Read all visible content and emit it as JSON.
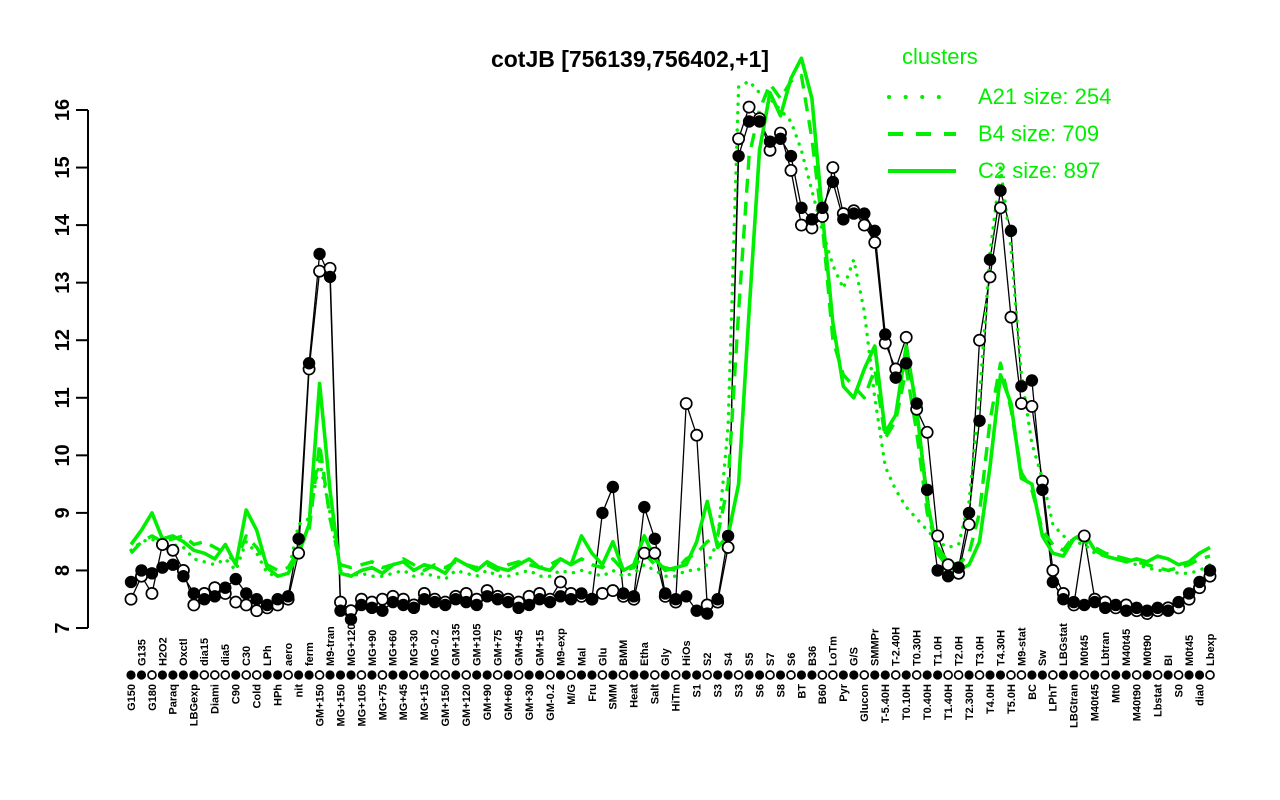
{
  "chart_data": {
    "type": "line",
    "title": "cotJB [756139,756402,+1]",
    "gene": "cotJB",
    "coordinates": "[756139,756402,+1]",
    "colors": {
      "cluster_green": "#00ee00",
      "probe_black": "#000000",
      "background": "#ffffff"
    },
    "ylim": [
      7,
      16
    ],
    "yticks": [
      7,
      8,
      9,
      10,
      11,
      12,
      13,
      14,
      15,
      16
    ],
    "grid": false,
    "legend": {
      "title": "clusters",
      "position": "top-right",
      "entries": [
        {
          "cluster": "A21",
          "size": 254,
          "label": "A21 size: 254",
          "line_style": "dotted"
        },
        {
          "cluster": "B4",
          "size": 709,
          "label": "B4 size: 709",
          "line_style": "dashed"
        },
        {
          "cluster": "C2",
          "size": 897,
          "label": "C2 size: 897",
          "line_style": "solid"
        }
      ]
    },
    "x_axis": {
      "conditions": [
        {
          "l": "G150",
          "r": "b",
          "m": "f"
        },
        {
          "l": "G135",
          "r": "t",
          "m": "f"
        },
        {
          "l": "G180",
          "r": "b",
          "m": "o"
        },
        {
          "l": "H2O2",
          "r": "t",
          "m": "f"
        },
        {
          "l": "Paraq",
          "r": "b",
          "m": "f"
        },
        {
          "l": "Oxctl",
          "r": "t",
          "m": "f"
        },
        {
          "l": "LBGexp",
          "r": "b",
          "m": "f"
        },
        {
          "l": "dia15",
          "r": "t",
          "m": "o"
        },
        {
          "l": "Diami",
          "r": "b",
          "m": "o"
        },
        {
          "l": "dia5",
          "r": "t",
          "m": "o"
        },
        {
          "l": "C90",
          "r": "b",
          "m": "f"
        },
        {
          "l": "C30",
          "r": "t",
          "m": "o"
        },
        {
          "l": "Cold",
          "r": "b",
          "m": "o"
        },
        {
          "l": "LPh",
          "r": "t",
          "m": "f"
        },
        {
          "l": "HPh",
          "r": "b",
          "m": "f"
        },
        {
          "l": "aero",
          "r": "t",
          "m": "o"
        },
        {
          "l": "nit",
          "r": "b",
          "m": "f"
        },
        {
          "l": "ferm",
          "r": "t",
          "m": "f"
        },
        {
          "l": "GM+150",
          "r": "b",
          "m": "o"
        },
        {
          "l": "M9-tran",
          "r": "t",
          "m": "f"
        },
        {
          "l": "MG+150",
          "r": "b",
          "m": "f"
        },
        {
          "l": "MG+120",
          "r": "t",
          "m": "f"
        },
        {
          "l": "MG+105",
          "r": "b",
          "m": "o"
        },
        {
          "l": "MG+90",
          "r": "t",
          "m": "f"
        },
        {
          "l": "MG+75",
          "r": "b",
          "m": "o"
        },
        {
          "l": "MG+60",
          "r": "t",
          "m": "f"
        },
        {
          "l": "MG+45",
          "r": "b",
          "m": "f"
        },
        {
          "l": "MG+30",
          "r": "t",
          "m": "o"
        },
        {
          "l": "MG+15",
          "r": "b",
          "m": "f"
        },
        {
          "l": "MG-0.2",
          "r": "t",
          "m": "o"
        },
        {
          "l": "GM+150",
          "r": "b",
          "m": "o"
        },
        {
          "l": "GM+135",
          "r": "t",
          "m": "f"
        },
        {
          "l": "GM+120",
          "r": "b",
          "m": "o"
        },
        {
          "l": "GM+105",
          "r": "t",
          "m": "f"
        },
        {
          "l": "GM+90",
          "r": "b",
          "m": "f"
        },
        {
          "l": "GM+75",
          "r": "t",
          "m": "o"
        },
        {
          "l": "GM+60",
          "r": "b",
          "m": "f"
        },
        {
          "l": "GM+45",
          "r": "t",
          "m": "o"
        },
        {
          "l": "GM+30",
          "r": "b",
          "m": "f"
        },
        {
          "l": "GM+15",
          "r": "t",
          "m": "f"
        },
        {
          "l": "GM-0.2",
          "r": "b",
          "m": "o"
        },
        {
          "l": "M9-exp",
          "r": "t",
          "m": "f"
        },
        {
          "l": "M/G",
          "r": "b",
          "m": "o"
        },
        {
          "l": "Mal",
          "r": "t",
          "m": "f"
        },
        {
          "l": "Fru",
          "r": "b",
          "m": "f"
        },
        {
          "l": "Glu",
          "r": "t",
          "m": "o"
        },
        {
          "l": "SMM",
          "r": "b",
          "m": "f"
        },
        {
          "l": "BMM",
          "r": "t",
          "m": "o"
        },
        {
          "l": "Heat",
          "r": "b",
          "m": "f"
        },
        {
          "l": "Etha",
          "r": "t",
          "m": "f"
        },
        {
          "l": "Salt",
          "r": "b",
          "m": "o"
        },
        {
          "l": "Gly",
          "r": "t",
          "m": "f"
        },
        {
          "l": "HiTm",
          "r": "b",
          "m": "o"
        },
        {
          "l": "HiOs",
          "r": "t",
          "m": "f"
        },
        {
          "l": "S1",
          "r": "b",
          "m": "f"
        },
        {
          "l": "S2",
          "r": "t",
          "m": "o"
        },
        {
          "l": "S3",
          "r": "b",
          "m": "f"
        },
        {
          "l": "S4",
          "r": "t",
          "m": "f"
        },
        {
          "l": "S3",
          "r": "b",
          "m": "o"
        },
        {
          "l": "S5",
          "r": "t",
          "m": "f"
        },
        {
          "l": "S6",
          "r": "b",
          "m": "f"
        },
        {
          "l": "S7",
          "r": "t",
          "m": "o"
        },
        {
          "l": "S8",
          "r": "b",
          "m": "f"
        },
        {
          "l": "S6",
          "r": "t",
          "m": "o"
        },
        {
          "l": "BT",
          "r": "b",
          "m": "f"
        },
        {
          "l": "B36",
          "r": "t",
          "m": "f"
        },
        {
          "l": "B60",
          "r": "b",
          "m": "o"
        },
        {
          "l": "LoTm",
          "r": "t",
          "m": "o"
        },
        {
          "l": "Pyr",
          "r": "b",
          "m": "f"
        },
        {
          "l": "G/S",
          "r": "t",
          "m": "f"
        },
        {
          "l": "Glucon",
          "r": "b",
          "m": "o"
        },
        {
          "l": "SMMPr",
          "r": "t",
          "m": "f"
        },
        {
          "l": "T-5.40H",
          "r": "b",
          "m": "f"
        },
        {
          "l": "T-2.40H",
          "r": "t",
          "m": "o"
        },
        {
          "l": "T0.10H",
          "r": "b",
          "m": "f"
        },
        {
          "l": "T0.30H",
          "r": "t",
          "m": "o"
        },
        {
          "l": "T0.40H",
          "r": "b",
          "m": "f"
        },
        {
          "l": "T1.0H",
          "r": "t",
          "m": "f"
        },
        {
          "l": "T1.40H",
          "r": "b",
          "m": "o"
        },
        {
          "l": "T2.0H",
          "r": "t",
          "m": "o"
        },
        {
          "l": "T2.30H",
          "r": "b",
          "m": "f"
        },
        {
          "l": "T3.0H",
          "r": "t",
          "m": "o"
        },
        {
          "l": "T4.0H",
          "r": "b",
          "m": "f"
        },
        {
          "l": "T4.30H",
          "r": "t",
          "m": "f"
        },
        {
          "l": "T5.0H",
          "r": "b",
          "m": "o"
        },
        {
          "l": "M9-stat",
          "r": "t",
          "m": "o"
        },
        {
          "l": "BC",
          "r": "b",
          "m": "f"
        },
        {
          "l": "Sw",
          "r": "t",
          "m": "f"
        },
        {
          "l": "LPhT",
          "r": "b",
          "m": "o"
        },
        {
          "l": "LBGstat",
          "r": "t",
          "m": "f"
        },
        {
          "l": "LBGtran",
          "r": "b",
          "m": "f"
        },
        {
          "l": "M0t45",
          "r": "t",
          "m": "o"
        },
        {
          "l": "M40t45",
          "r": "b",
          "m": "f"
        },
        {
          "l": "Lbtran",
          "r": "t",
          "m": "o"
        },
        {
          "l": "Mt0",
          "r": "b",
          "m": "f"
        },
        {
          "l": "M40t45",
          "r": "t",
          "m": "f"
        },
        {
          "l": "M40t90",
          "r": "b",
          "m": "o"
        },
        {
          "l": "M0t90",
          "r": "t",
          "m": "f"
        },
        {
          "l": "Lbstat",
          "r": "b",
          "m": "o"
        },
        {
          "l": "BI",
          "r": "t",
          "m": "f"
        },
        {
          "l": "S0",
          "r": "b",
          "m": "o"
        },
        {
          "l": "M0t45",
          "r": "t",
          "m": "f"
        },
        {
          "l": "dia0",
          "r": "b",
          "m": "f"
        },
        {
          "l": "Lbexp",
          "r": "t",
          "m": "o"
        }
      ]
    },
    "series": [
      {
        "name": "A21",
        "role": "cluster-mean",
        "style": "dotted",
        "color": "#00ee00",
        "values": [
          8.35,
          8.5,
          8.55,
          8.4,
          8.45,
          8.4,
          8.2,
          8.15,
          8.1,
          8.2,
          8.0,
          8.5,
          8.3,
          7.95,
          7.9,
          7.95,
          8.8,
          8.9,
          9.9,
          9.0,
          8.0,
          7.9,
          7.95,
          7.9,
          7.9,
          7.95,
          8.0,
          7.9,
          7.95,
          7.9,
          7.85,
          8.0,
          7.95,
          7.9,
          8.0,
          7.9,
          7.9,
          7.95,
          8.0,
          7.9,
          7.9,
          8.0,
          7.95,
          8.0,
          7.95,
          7.9,
          8.0,
          7.9,
          7.95,
          8.1,
          8.0,
          7.9,
          7.9,
          8.0,
          8.0,
          8.1,
          8.5,
          10.5,
          16.4,
          16.5,
          16.3,
          16.2,
          16.0,
          15.8,
          15.3,
          14.6,
          13.9,
          13.3,
          12.9,
          13.4,
          12.5,
          11.0,
          9.8,
          9.4,
          9.1,
          8.9,
          8.7,
          8.5,
          8.4,
          8.45,
          9.2,
          11.0,
          13.5,
          15.0,
          13.6,
          11.4,
          10.2,
          9.6,
          8.8,
          8.6,
          8.5,
          8.45,
          8.3,
          8.25,
          8.2,
          8.15,
          8.1,
          8.05,
          8.0,
          8.0,
          7.95,
          7.95,
          8.0,
          8.1
        ]
      },
      {
        "name": "B4",
        "role": "cluster-mean",
        "style": "dashed",
        "color": "#00ee00",
        "values": [
          8.3,
          8.5,
          8.6,
          8.5,
          8.55,
          8.6,
          8.45,
          8.5,
          8.4,
          8.3,
          8.15,
          8.6,
          8.4,
          8.1,
          8.0,
          8.05,
          8.35,
          8.7,
          10.2,
          8.9,
          8.1,
          8.05,
          8.1,
          8.15,
          8.05,
          8.1,
          8.2,
          8.1,
          8.0,
          8.1,
          8.05,
          8.15,
          8.1,
          8.05,
          8.1,
          8.0,
          8.1,
          8.15,
          8.1,
          8.05,
          8.1,
          8.2,
          8.1,
          8.2,
          8.1,
          8.05,
          8.2,
          8.0,
          8.05,
          8.3,
          8.1,
          8.05,
          8.0,
          8.2,
          8.3,
          8.5,
          8.6,
          9.5,
          12.5,
          15.2,
          16.0,
          16.45,
          16.2,
          16.5,
          16.6,
          15.5,
          14.0,
          12.0,
          11.4,
          11.2,
          11.0,
          11.5,
          10.3,
          10.6,
          11.5,
          10.4,
          9.0,
          8.4,
          8.15,
          8.1,
          8.3,
          9.0,
          10.6,
          11.6,
          10.8,
          9.7,
          9.4,
          8.7,
          8.45,
          8.35,
          8.6,
          8.5,
          8.4,
          8.3,
          8.25,
          8.2,
          8.15,
          8.1,
          8.05,
          8.0,
          8.05,
          8.1,
          8.2,
          8.25
        ]
      },
      {
        "name": "C2",
        "role": "cluster-mean",
        "style": "solid",
        "color": "#00ee00",
        "values": [
          8.45,
          8.7,
          9.0,
          8.55,
          8.6,
          8.5,
          8.35,
          8.3,
          8.2,
          8.45,
          8.1,
          9.05,
          8.7,
          8.05,
          7.9,
          7.95,
          8.3,
          8.8,
          11.25,
          9.4,
          7.95,
          7.9,
          8.0,
          8.05,
          7.95,
          8.1,
          8.15,
          8.0,
          8.1,
          8.05,
          7.95,
          8.2,
          8.1,
          8.0,
          8.15,
          8.05,
          8.0,
          8.1,
          8.2,
          8.05,
          8.0,
          8.2,
          8.1,
          8.6,
          8.3,
          8.1,
          8.5,
          8.0,
          8.1,
          8.6,
          8.2,
          8.0,
          8.05,
          8.1,
          8.5,
          9.2,
          8.4,
          8.6,
          9.5,
          12.5,
          15.3,
          16.3,
          15.9,
          16.55,
          16.9,
          16.2,
          14.2,
          12.3,
          11.2,
          11.0,
          11.5,
          11.9,
          10.4,
          10.7,
          11.9,
          10.8,
          9.2,
          8.3,
          8.05,
          8.0,
          8.1,
          8.5,
          9.8,
          11.4,
          10.9,
          9.6,
          9.5,
          8.6,
          8.3,
          8.25,
          8.55,
          8.65,
          8.35,
          8.25,
          8.2,
          8.15,
          8.2,
          8.15,
          8.25,
          8.2,
          8.1,
          8.15,
          8.3,
          8.4
        ]
      },
      {
        "name": "probe-open",
        "role": "probe",
        "style": "line-open-markers",
        "color": "#000000",
        "values": [
          7.5,
          7.9,
          7.6,
          8.45,
          8.35,
          8.0,
          7.4,
          7.6,
          7.7,
          7.6,
          7.45,
          7.4,
          7.3,
          7.35,
          7.4,
          7.5,
          8.3,
          11.5,
          13.2,
          13.25,
          7.45,
          7.3,
          7.5,
          7.45,
          7.5,
          7.55,
          7.5,
          7.4,
          7.6,
          7.5,
          7.45,
          7.55,
          7.6,
          7.5,
          7.65,
          7.55,
          7.5,
          7.45,
          7.55,
          7.6,
          7.5,
          7.8,
          7.6,
          7.55,
          7.5,
          7.6,
          7.65,
          7.55,
          7.5,
          8.3,
          8.3,
          7.55,
          7.45,
          10.9,
          10.35,
          7.4,
          7.45,
          8.4,
          15.5,
          16.05,
          15.85,
          15.3,
          15.6,
          14.95,
          14.0,
          13.95,
          14.15,
          15.0,
          14.2,
          14.25,
          14.0,
          13.7,
          11.95,
          11.5,
          12.05,
          10.8,
          10.4,
          8.6,
          8.1,
          7.95,
          8.8,
          12.0,
          13.1,
          14.3,
          12.4,
          10.9,
          10.85,
          9.55,
          8.0,
          7.6,
          7.4,
          8.6,
          7.5,
          7.45,
          7.35,
          7.4,
          7.3,
          7.25,
          7.3,
          7.35,
          7.35,
          7.5,
          7.7,
          7.9
        ]
      },
      {
        "name": "probe-filled",
        "role": "probe",
        "style": "line-filled-markers",
        "color": "#000000",
        "values": [
          7.8,
          8.0,
          7.95,
          8.05,
          8.1,
          7.9,
          7.6,
          7.5,
          7.55,
          7.7,
          7.85,
          7.6,
          7.5,
          7.4,
          7.5,
          7.55,
          8.55,
          11.6,
          13.5,
          13.1,
          7.3,
          7.15,
          7.4,
          7.35,
          7.3,
          7.45,
          7.4,
          7.35,
          7.5,
          7.45,
          7.4,
          7.5,
          7.45,
          7.4,
          7.55,
          7.5,
          7.45,
          7.35,
          7.4,
          7.5,
          7.45,
          7.55,
          7.5,
          7.6,
          7.5,
          9.0,
          9.45,
          7.6,
          7.55,
          9.1,
          8.55,
          7.6,
          7.5,
          7.55,
          7.3,
          7.25,
          7.5,
          8.6,
          15.2,
          15.8,
          15.8,
          15.45,
          15.5,
          15.2,
          14.3,
          14.1,
          14.3,
          14.75,
          14.1,
          14.2,
          14.2,
          13.9,
          12.1,
          11.35,
          11.6,
          10.9,
          9.4,
          8.0,
          7.9,
          8.05,
          9.0,
          10.6,
          13.4,
          14.6,
          13.9,
          11.2,
          11.3,
          9.4,
          7.8,
          7.5,
          7.45,
          7.4,
          7.45,
          7.35,
          7.4,
          7.3,
          7.35,
          7.3,
          7.35,
          7.3,
          7.45,
          7.6,
          7.8,
          8.0
        ]
      }
    ]
  }
}
